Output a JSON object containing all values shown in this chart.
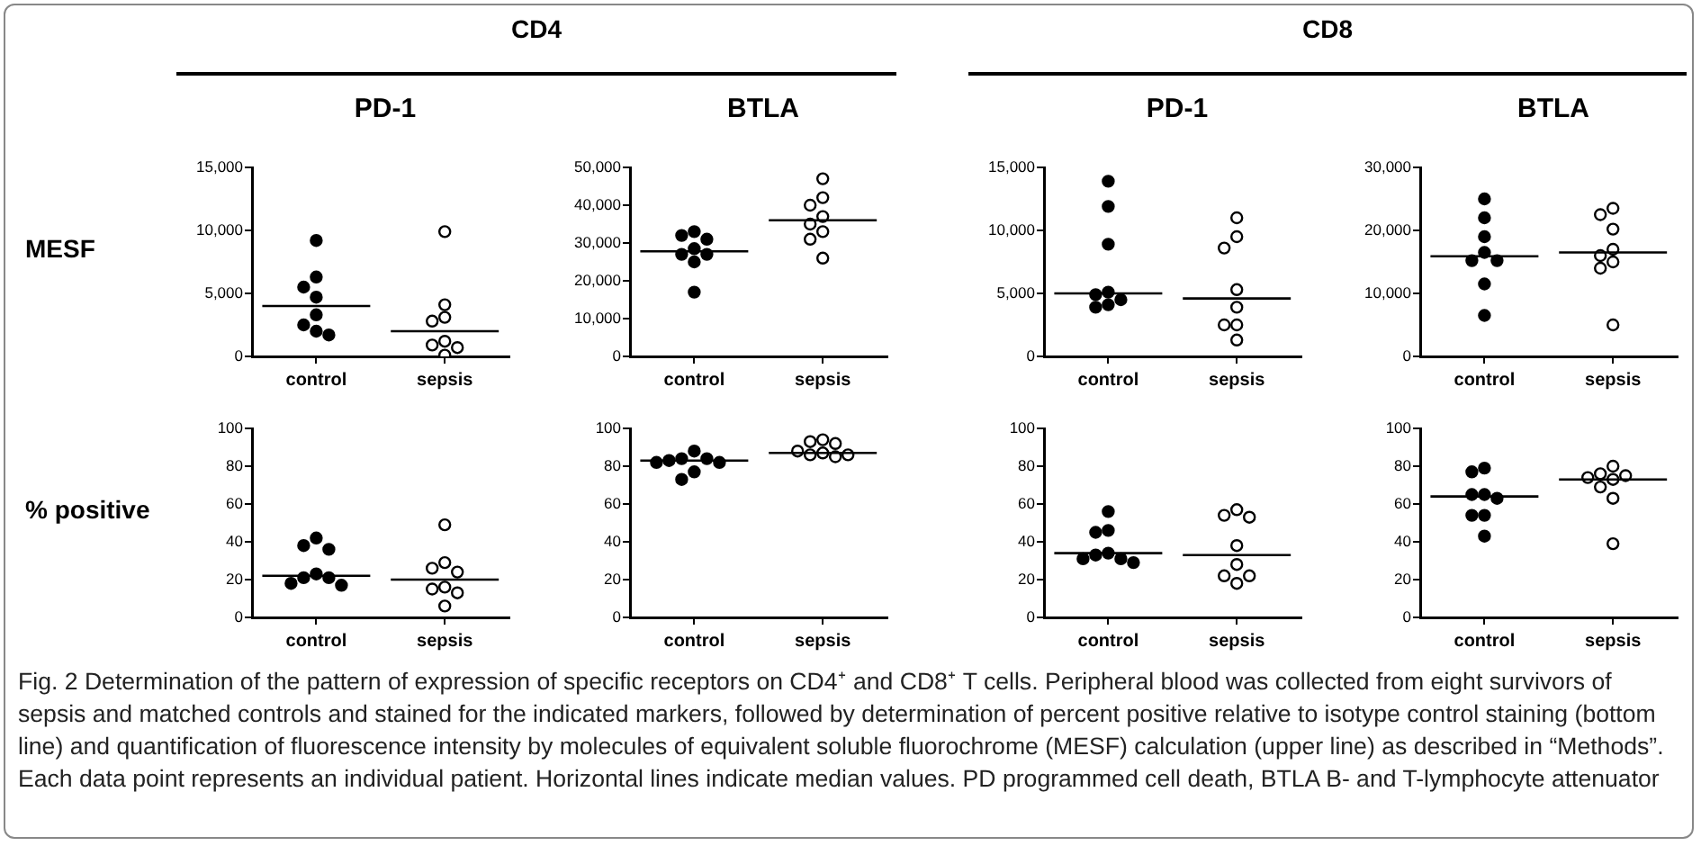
{
  "chart_data": [
    {
      "type": "scatter",
      "title": "PD-1",
      "ylabel": "MESF",
      "annotations": [
        "CD4"
      ],
      "categories": [
        "control",
        "sepsis"
      ],
      "ylim": [
        0,
        15000
      ],
      "yticks": [
        0,
        {
          "value": 5000,
          "label": "5,000"
        },
        {
          "value": 10000,
          "label": "10,000"
        },
        {
          "value": 15000,
          "label": "15,000"
        }
      ],
      "series": [
        {
          "type": "scatter",
          "marker": "circle",
          "color": "#000000",
          "x": [
            "control",
            "control",
            "control",
            "control",
            "control",
            "control",
            "control",
            "control"
          ],
          "values": [
            9200,
            6300,
            5500,
            4700,
            3300,
            2500,
            2000,
            1700
          ]
        },
        {
          "type": "scatter",
          "marker": "circle",
          "color": "#000000",
          "x": [
            "sepsis",
            "sepsis",
            "sepsis",
            "sepsis",
            "sepsis",
            "sepsis",
            "sepsis",
            "sepsis"
          ],
          "values": [
            9900,
            4100,
            3100,
            2800,
            1200,
            900,
            700,
            100
          ]
        }
      ],
      "ref_lines": [
        {
          "axis": "y",
          "value": 4000,
          "color": "#000000"
        },
        {
          "axis": "y",
          "value": 2000,
          "color": "#000000"
        }
      ]
    },
    {
      "type": "scatter",
      "title": "BTLA",
      "categories": [
        "control",
        "sepsis"
      ],
      "ylim": [
        0,
        50000
      ],
      "yticks": [
        0,
        {
          "value": 10000,
          "label": "10,000"
        },
        {
          "value": 20000,
          "label": "20,000"
        },
        {
          "value": 30000,
          "label": "30,000"
        },
        {
          "value": 40000,
          "label": "40,000"
        },
        {
          "value": 50000,
          "label": "50,000"
        }
      ],
      "series": [
        {
          "type": "scatter",
          "marker": "circle",
          "color": "#000000",
          "x": [
            "control",
            "control",
            "control",
            "control",
            "control",
            "control",
            "control",
            "control"
          ],
          "values": [
            33000,
            32000,
            31000,
            28500,
            27000,
            27000,
            25000,
            17000
          ]
        },
        {
          "type": "scatter",
          "marker": "circle",
          "color": "#000000",
          "x": [
            "sepsis",
            "sepsis",
            "sepsis",
            "sepsis",
            "sepsis",
            "sepsis",
            "sepsis",
            "sepsis"
          ],
          "values": [
            47000,
            42000,
            40000,
            37000,
            35000,
            33000,
            31000,
            26000
          ]
        }
      ],
      "ref_lines": [
        {
          "axis": "y",
          "value": 27800,
          "color": "#000000"
        },
        {
          "axis": "y",
          "value": 36000,
          "color": "#000000"
        }
      ]
    },
    {
      "type": "scatter",
      "title": "PD-1",
      "annotations": [
        "CD8"
      ],
      "categories": [
        "control",
        "sepsis"
      ],
      "ylim": [
        0,
        15000
      ],
      "yticks": [
        0,
        {
          "value": 5000,
          "label": "5,000"
        },
        {
          "value": 10000,
          "label": "10,000"
        },
        {
          "value": 15000,
          "label": "15,000"
        }
      ],
      "series": [
        {
          "type": "scatter",
          "marker": "circle",
          "color": "#000000",
          "x": [
            "control",
            "control",
            "control",
            "control",
            "control",
            "control",
            "control",
            "control"
          ],
          "values": [
            13900,
            11900,
            8900,
            5100,
            4900,
            4500,
            4100,
            3900
          ]
        },
        {
          "type": "scatter",
          "marker": "circle",
          "color": "#000000",
          "x": [
            "sepsis",
            "sepsis",
            "sepsis",
            "sepsis",
            "sepsis",
            "sepsis",
            "sepsis",
            "sepsis"
          ],
          "values": [
            11000,
            9500,
            8600,
            5300,
            3900,
            2500,
            2500,
            1300
          ]
        }
      ],
      "ref_lines": [
        {
          "axis": "y",
          "value": 5000,
          "color": "#000000"
        },
        {
          "axis": "y",
          "value": 4600,
          "color": "#000000"
        }
      ]
    },
    {
      "type": "scatter",
      "title": "BTLA",
      "categories": [
        "control",
        "sepsis"
      ],
      "ylim": [
        0,
        30000
      ],
      "yticks": [
        0,
        {
          "value": 10000,
          "label": "10,000"
        },
        {
          "value": 20000,
          "label": "20,000"
        },
        {
          "value": 30000,
          "label": "30,000"
        }
      ],
      "series": [
        {
          "type": "scatter",
          "marker": "circle",
          "color": "#000000",
          "x": [
            "control",
            "control",
            "control",
            "control",
            "control",
            "control",
            "control",
            "control"
          ],
          "values": [
            25000,
            22000,
            19000,
            16500,
            15200,
            15200,
            11500,
            6500
          ]
        },
        {
          "type": "scatter",
          "marker": "circle",
          "color": "#000000",
          "x": [
            "sepsis",
            "sepsis",
            "sepsis",
            "sepsis",
            "sepsis",
            "sepsis",
            "sepsis",
            "sepsis"
          ],
          "values": [
            23500,
            22500,
            20200,
            17000,
            16000,
            15000,
            14000,
            5000
          ]
        }
      ],
      "ref_lines": [
        {
          "axis": "y",
          "value": 15900,
          "color": "#000000"
        },
        {
          "axis": "y",
          "value": 16500,
          "color": "#000000"
        }
      ]
    },
    {
      "type": "scatter",
      "ylabel": "% positive",
      "categories": [
        "control",
        "sepsis"
      ],
      "ylim": [
        0,
        100
      ],
      "yticks": [
        0,
        20,
        40,
        60,
        80,
        100
      ],
      "series": [
        {
          "type": "scatter",
          "marker": "circle",
          "color": "#000000",
          "x": [
            "control",
            "control",
            "control",
            "control",
            "control",
            "control",
            "control",
            "control"
          ],
          "values": [
            42,
            38,
            36,
            23,
            21,
            21,
            18,
            17
          ]
        },
        {
          "type": "scatter",
          "marker": "circle",
          "color": "#000000",
          "x": [
            "sepsis",
            "sepsis",
            "sepsis",
            "sepsis",
            "sepsis",
            "sepsis",
            "sepsis",
            "sepsis"
          ],
          "values": [
            49,
            29,
            26,
            24,
            16,
            15,
            13,
            6
          ]
        }
      ],
      "ref_lines": [
        {
          "axis": "y",
          "value": 22,
          "color": "#000000"
        },
        {
          "axis": "y",
          "value": 20,
          "color": "#000000"
        }
      ]
    },
    {
      "type": "scatter",
      "categories": [
        "control",
        "sepsis"
      ],
      "ylim": [
        0,
        100
      ],
      "yticks": [
        0,
        20,
        40,
        60,
        80,
        100
      ],
      "series": [
        {
          "type": "scatter",
          "marker": "circle",
          "color": "#000000",
          "x": [
            "control",
            "control",
            "control",
            "control",
            "control",
            "control",
            "control",
            "control"
          ],
          "values": [
            88,
            84,
            84,
            83,
            82,
            82,
            77,
            73
          ]
        },
        {
          "type": "scatter",
          "marker": "circle",
          "color": "#000000",
          "x": [
            "sepsis",
            "sepsis",
            "sepsis",
            "sepsis",
            "sepsis",
            "sepsis",
            "sepsis",
            "sepsis"
          ],
          "values": [
            94,
            93,
            92,
            88,
            87,
            86,
            86,
            85
          ]
        }
      ],
      "ref_lines": [
        {
          "axis": "y",
          "value": 83,
          "color": "#000000"
        },
        {
          "axis": "y",
          "value": 87,
          "color": "#000000"
        }
      ]
    },
    {
      "type": "scatter",
      "categories": [
        "control",
        "sepsis"
      ],
      "ylim": [
        0,
        100
      ],
      "yticks": [
        0,
        20,
        40,
        60,
        80,
        100
      ],
      "series": [
        {
          "type": "scatter",
          "marker": "circle",
          "color": "#000000",
          "x": [
            "control",
            "control",
            "control",
            "control",
            "control",
            "control",
            "control",
            "control"
          ],
          "values": [
            56,
            46,
            45,
            34,
            33,
            31,
            31,
            29
          ]
        },
        {
          "type": "scatter",
          "marker": "circle",
          "color": "#000000",
          "x": [
            "sepsis",
            "sepsis",
            "sepsis",
            "sepsis",
            "sepsis",
            "sepsis",
            "sepsis",
            "sepsis"
          ],
          "values": [
            57,
            54,
            53,
            38,
            28,
            22,
            22,
            18
          ]
        }
      ],
      "ref_lines": [
        {
          "axis": "y",
          "value": 34,
          "color": "#000000"
        },
        {
          "axis": "y",
          "value": 33,
          "color": "#000000"
        }
      ]
    },
    {
      "type": "scatter",
      "categories": [
        "control",
        "sepsis"
      ],
      "ylim": [
        0,
        100
      ],
      "yticks": [
        0,
        20,
        40,
        60,
        80,
        100
      ],
      "series": [
        {
          "type": "scatter",
          "marker": "circle",
          "color": "#000000",
          "x": [
            "control",
            "control",
            "control",
            "control",
            "control",
            "control",
            "control",
            "control"
          ],
          "values": [
            79,
            77,
            65,
            65,
            63,
            54,
            54,
            43
          ]
        },
        {
          "type": "scatter",
          "marker": "circle",
          "color": "#000000",
          "x": [
            "sepsis",
            "sepsis",
            "sepsis",
            "sepsis",
            "sepsis",
            "sepsis",
            "sepsis",
            "sepsis"
          ],
          "values": [
            80,
            76,
            75,
            74,
            73,
            69,
            63,
            39
          ]
        }
      ],
      "ref_lines": [
        {
          "axis": "y",
          "value": 64,
          "color": "#000000"
        },
        {
          "axis": "y",
          "value": 73,
          "color": "#000000"
        }
      ]
    },
    {
      "type": "other",
      "annotations": [
        "Fig. 2 Determination of the pattern of expression of specific receptors on CD4⁺ and CD8⁺ T cells. Peripheral blood was collected from eight survivors of sepsis and matched controls and stained for the indicated markers, followed by determination of percent positive relative to isotype control staining (bottom line) and quantification of fluorescence intensity by molecules of equivalent soluble fluorochrome (MESF) calculation (upper line) as described in “Methods”. Each data point represents an individual patient. Horizontal lines indicate median values. PD programmed cell death, BTLA B- and T-lymphocyte attenuator"
      ]
    }
  ]
}
